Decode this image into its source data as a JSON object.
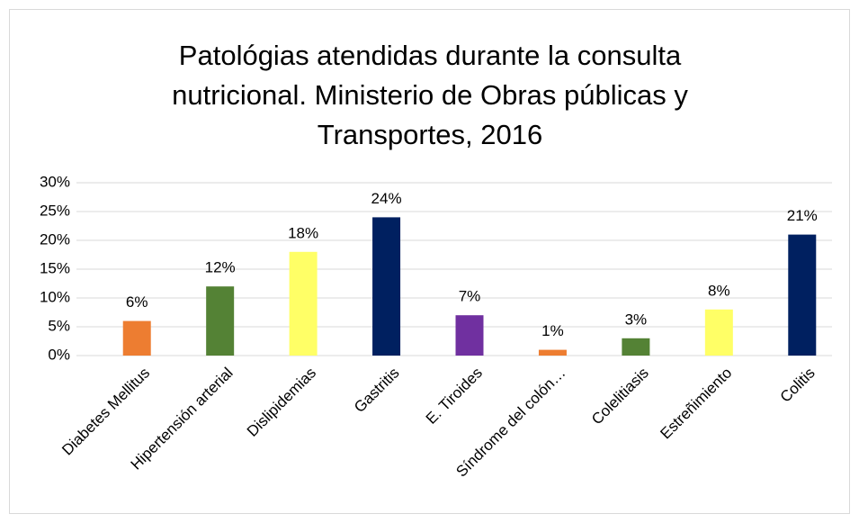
{
  "chart_data": {
    "type": "bar",
    "title": "Patológias atendidas durante la consulta nutricional. Ministerio de Obras públicas y Transportes, 2016",
    "categories": [
      "Diabetes Mellitus",
      "Hipertensión arterial",
      "Dislipidemias",
      "Gastritis",
      "E. Tiroides",
      "Síndrome del colón…",
      "Colelitiasis",
      "Estreñimiento",
      "Colitis"
    ],
    "values": [
      6,
      12,
      18,
      24,
      7,
      1,
      3,
      8,
      21
    ],
    "value_labels": [
      "6%",
      "12%",
      "18%",
      "24%",
      "7%",
      "1%",
      "3%",
      "8%",
      "21%"
    ],
    "colors": [
      "#ED7D31",
      "#548235",
      "#FFFF66",
      "#002060",
      "#7030A0",
      "#ED7D31",
      "#548235",
      "#FFFF66",
      "#002060"
    ],
    "ylim": [
      0,
      30
    ],
    "yticks": [
      {
        "value": 0,
        "label": "0%"
      },
      {
        "value": 5,
        "label": "5%"
      },
      {
        "value": 10,
        "label": "10%"
      },
      {
        "value": 15,
        "label": "15%"
      },
      {
        "value": 20,
        "label": "20%"
      },
      {
        "value": 25,
        "label": "25%"
      },
      {
        "value": 30,
        "label": "30%"
      }
    ],
    "grid": true
  }
}
